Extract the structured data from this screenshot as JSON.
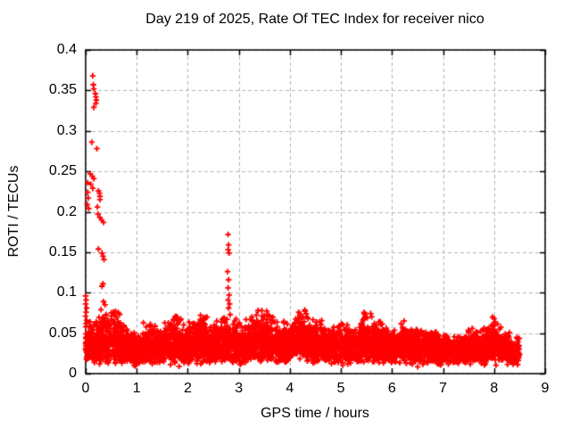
{
  "chart_data": {
    "type": "scatter",
    "title": "Day 219 of 2025, Rate Of TEC Index for receiver nico",
    "xlabel": "GPS time / hours",
    "ylabel": "ROTI / TECUs",
    "xlim": [
      0,
      9
    ],
    "ylim": [
      0,
      0.4
    ],
    "x_ticks": [
      0,
      1,
      2,
      3,
      4,
      5,
      6,
      7,
      8,
      9
    ],
    "x_tick_labels": [
      "0",
      "1",
      "2",
      "3",
      "4",
      "5",
      "6",
      "7",
      "8",
      "9"
    ],
    "y_ticks": [
      0,
      0.05,
      0.1,
      0.15,
      0.2,
      0.25,
      0.3,
      0.35,
      0.4
    ],
    "y_tick_labels": [
      "0",
      "0.05",
      "0.1",
      "0.15",
      "0.2",
      "0.25",
      "0.3",
      "0.35",
      "0.4"
    ],
    "grid": true,
    "legend": "none",
    "marker": "plus",
    "marker_size_px": 7,
    "colors": {
      "points": "#ff0000",
      "grid": "#b3b3b3",
      "axis": "#000000",
      "background": "#ffffff",
      "text": "#000000"
    },
    "dense_band": {
      "description": "Dense noise band of ROTI values covering 0 to 8.5 h; solid mass roughly 0.01-0.05 TECU with ragged quasi-periodic peaks given by envelope_top (values at 0.25 h steps from 0.0 to 8.5 h).",
      "x_start": 0,
      "x_end": 8.5,
      "bin_hours": 0.25,
      "envelope_top": [
        0.058,
        0.068,
        0.078,
        0.066,
        0.048,
        0.062,
        0.054,
        0.072,
        0.058,
        0.076,
        0.062,
        0.068,
        0.06,
        0.07,
        0.076,
        0.064,
        0.06,
        0.078,
        0.064,
        0.056,
        0.062,
        0.056,
        0.075,
        0.064,
        0.056,
        0.06,
        0.056,
        0.052,
        0.05,
        0.048,
        0.054,
        0.05,
        0.07,
        0.05,
        0.042
      ],
      "envelope_bottom": 0.007,
      "points_per_bin": 160,
      "seed": 2025219
    },
    "outlier_points": [
      [
        0.14,
        0.368
      ],
      [
        0.15,
        0.357
      ],
      [
        0.16,
        0.352
      ],
      [
        0.19,
        0.346
      ],
      [
        0.2,
        0.342
      ],
      [
        0.21,
        0.338
      ],
      [
        0.2,
        0.334
      ],
      [
        0.16,
        0.329
      ],
      [
        0.12,
        0.286
      ],
      [
        0.22,
        0.278
      ],
      [
        0.09,
        0.247
      ],
      [
        0.13,
        0.244
      ],
      [
        0.16,
        0.241
      ],
      [
        0.04,
        0.236
      ],
      [
        0.1,
        0.234
      ],
      [
        0.14,
        0.229
      ],
      [
        0.25,
        0.226
      ],
      [
        0.04,
        0.224
      ],
      [
        0.27,
        0.223
      ],
      [
        0.28,
        0.219
      ],
      [
        0.05,
        0.217
      ],
      [
        0.28,
        0.215
      ],
      [
        0.03,
        0.209
      ],
      [
        0.23,
        0.206
      ],
      [
        0.06,
        0.204
      ],
      [
        0.24,
        0.197
      ],
      [
        0.28,
        0.193
      ],
      [
        0.31,
        0.19
      ],
      [
        0.35,
        0.187
      ],
      [
        0.25,
        0.154
      ],
      [
        0.32,
        0.149
      ],
      [
        0.34,
        0.145
      ],
      [
        0.36,
        0.141
      ],
      [
        0.34,
        0.111
      ],
      [
        0.32,
        0.108
      ],
      [
        0.0,
        0.096
      ],
      [
        0.01,
        0.091
      ],
      [
        0.35,
        0.089
      ],
      [
        0.0,
        0.086
      ],
      [
        0.38,
        0.085
      ],
      [
        0.02,
        0.081
      ],
      [
        0.3,
        0.079
      ],
      [
        0.01,
        0.076
      ],
      [
        0.4,
        0.073
      ],
      [
        0.0,
        0.071
      ],
      [
        0.02,
        0.066
      ],
      [
        0.01,
        0.062
      ],
      [
        0.0,
        0.058
      ],
      [
        0.55,
        0.076
      ],
      [
        0.58,
        0.072
      ],
      [
        2.79,
        0.172
      ],
      [
        2.8,
        0.159
      ],
      [
        2.79,
        0.153
      ],
      [
        2.81,
        0.149
      ],
      [
        2.78,
        0.126
      ],
      [
        2.8,
        0.116
      ],
      [
        2.79,
        0.106
      ],
      [
        2.81,
        0.097
      ],
      [
        2.79,
        0.091
      ],
      [
        2.82,
        0.086
      ],
      [
        2.8,
        0.081
      ],
      [
        2.83,
        0.073
      ],
      [
        2.77,
        0.067
      ],
      [
        1.13,
        0.063
      ],
      [
        1.75,
        0.07
      ],
      [
        2.25,
        0.072
      ],
      [
        2.32,
        0.068
      ],
      [
        3.5,
        0.072
      ],
      [
        4.3,
        0.077
      ],
      [
        4.32,
        0.074
      ],
      [
        5.46,
        0.074
      ],
      [
        5.48,
        0.071
      ],
      [
        7.97,
        0.07
      ],
      [
        8.0,
        0.068
      ],
      [
        8.02,
        0.064
      ]
    ]
  }
}
